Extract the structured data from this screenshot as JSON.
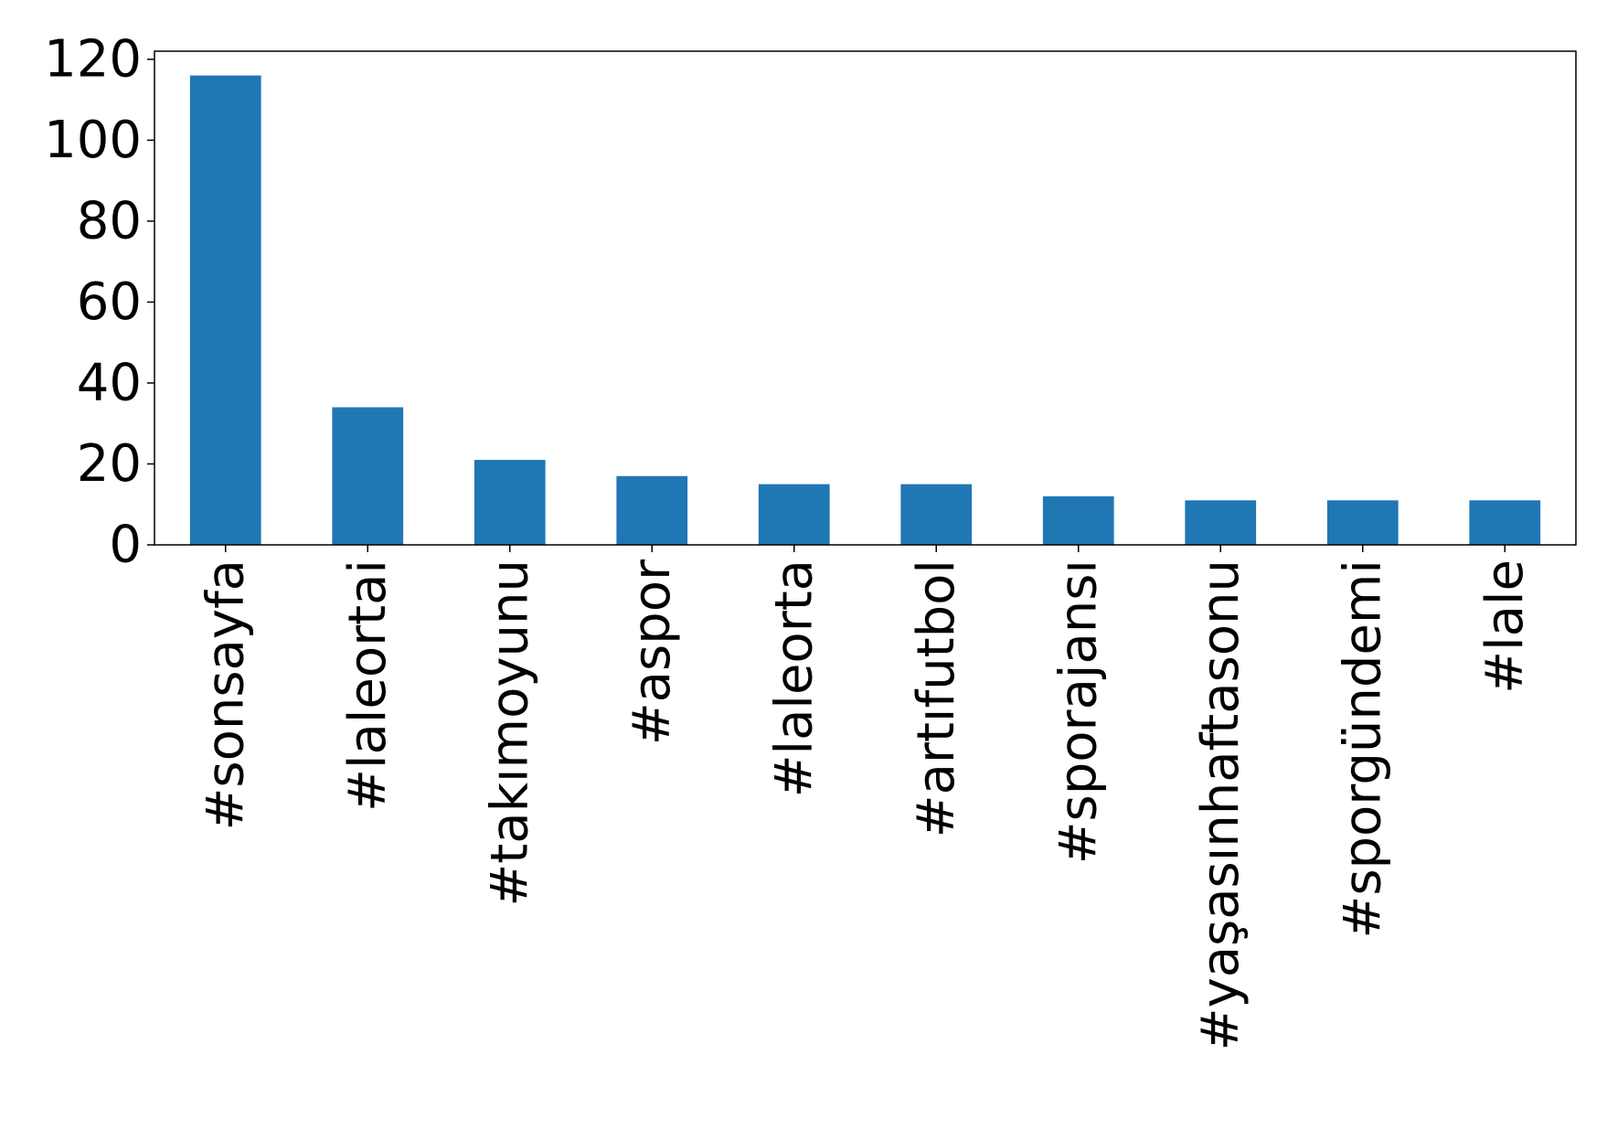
{
  "chart_data": {
    "type": "bar",
    "title": "",
    "xlabel": "",
    "ylabel": "",
    "categories": [
      "#sonsayfa",
      "#laleortai",
      "#takımoyunu",
      "#aspor",
      "#laleorta",
      "#artıfutbol",
      "#sporajansı",
      "#yaşasınhaftasonu",
      "#sporgündemi",
      "#lale"
    ],
    "values": [
      116,
      34,
      21,
      17,
      15,
      15,
      12,
      11,
      11,
      11
    ],
    "ylim": [
      0,
      122
    ],
    "yticks": [
      0,
      20,
      40,
      60,
      80,
      100,
      120
    ],
    "grid": false,
    "legend": "none",
    "bar_color": "#1f77b4"
  }
}
